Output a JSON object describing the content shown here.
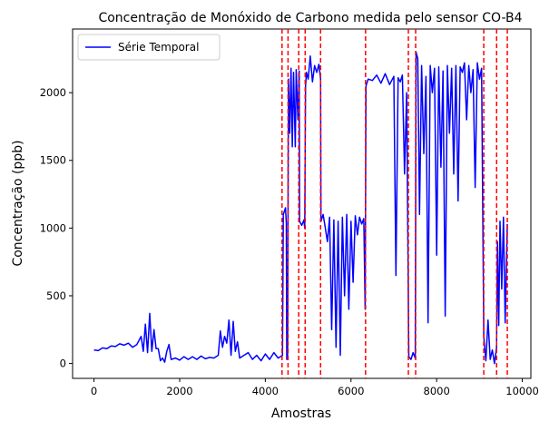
{
  "chart_data": {
    "type": "line",
    "title": "Concentração de Monóxido de Carbono medida pelo sensor CO-B4",
    "xlabel": "Amostras",
    "ylabel": "Concentração (ppb)",
    "xlim": [
      -500,
      10200
    ],
    "ylim": [
      -110,
      2470
    ],
    "x_ticks": [
      0,
      2000,
      4000,
      6000,
      8000,
      10000
    ],
    "y_ticks": [
      0,
      500,
      1000,
      1500,
      2000
    ],
    "grid": false,
    "legend": {
      "position": "upper-left",
      "entries": [
        "Série Temporal"
      ]
    },
    "series": [
      {
        "name": "Série Temporal",
        "color": "#0000ff",
        "points": [
          [
            0,
            100
          ],
          [
            100,
            95
          ],
          [
            200,
            115
          ],
          [
            300,
            110
          ],
          [
            400,
            130
          ],
          [
            500,
            125
          ],
          [
            600,
            145
          ],
          [
            700,
            135
          ],
          [
            800,
            150
          ],
          [
            900,
            120
          ],
          [
            1000,
            140
          ],
          [
            1100,
            200
          ],
          [
            1150,
            90
          ],
          [
            1200,
            290
          ],
          [
            1250,
            80
          ],
          [
            1300,
            370
          ],
          [
            1350,
            90
          ],
          [
            1400,
            250
          ],
          [
            1450,
            110
          ],
          [
            1500,
            110
          ],
          [
            1550,
            20
          ],
          [
            1600,
            40
          ],
          [
            1650,
            10
          ],
          [
            1700,
            90
          ],
          [
            1750,
            140
          ],
          [
            1800,
            30
          ],
          [
            1900,
            40
          ],
          [
            2000,
            25
          ],
          [
            2100,
            50
          ],
          [
            2200,
            30
          ],
          [
            2300,
            50
          ],
          [
            2400,
            30
          ],
          [
            2500,
            55
          ],
          [
            2600,
            35
          ],
          [
            2700,
            45
          ],
          [
            2800,
            40
          ],
          [
            2900,
            60
          ],
          [
            2950,
            240
          ],
          [
            3000,
            120
          ],
          [
            3050,
            200
          ],
          [
            3100,
            150
          ],
          [
            3150,
            320
          ],
          [
            3200,
            60
          ],
          [
            3250,
            310
          ],
          [
            3300,
            90
          ],
          [
            3350,
            160
          ],
          [
            3400,
            40
          ],
          [
            3500,
            60
          ],
          [
            3600,
            80
          ],
          [
            3700,
            30
          ],
          [
            3800,
            60
          ],
          [
            3900,
            20
          ],
          [
            4000,
            70
          ],
          [
            4100,
            30
          ],
          [
            4200,
            80
          ],
          [
            4300,
            40
          ],
          [
            4400,
            60
          ],
          [
            4420,
            1100
          ],
          [
            4470,
            1150
          ],
          [
            4490,
            1040
          ],
          [
            4500,
            30
          ],
          [
            4520,
            60
          ],
          [
            4540,
            2100
          ],
          [
            4570,
            1700
          ],
          [
            4600,
            2180
          ],
          [
            4630,
            1600
          ],
          [
            4660,
            2150
          ],
          [
            4700,
            1600
          ],
          [
            4720,
            2170
          ],
          [
            4760,
            1800
          ],
          [
            4790,
            2160
          ],
          [
            4800,
            1050
          ],
          [
            4850,
            1020
          ],
          [
            4900,
            1060
          ],
          [
            4920,
            1000
          ],
          [
            4940,
            2050
          ],
          [
            4960,
            2150
          ],
          [
            5000,
            2100
          ],
          [
            5050,
            2270
          ],
          [
            5100,
            2080
          ],
          [
            5150,
            2200
          ],
          [
            5200,
            2150
          ],
          [
            5250,
            2210
          ],
          [
            5290,
            2100
          ],
          [
            5300,
            1050
          ],
          [
            5350,
            1100
          ],
          [
            5400,
            1000
          ],
          [
            5450,
            900
          ],
          [
            5500,
            1080
          ],
          [
            5550,
            250
          ],
          [
            5600,
            1060
          ],
          [
            5650,
            120
          ],
          [
            5700,
            1050
          ],
          [
            5750,
            60
          ],
          [
            5800,
            1080
          ],
          [
            5850,
            500
          ],
          [
            5900,
            1100
          ],
          [
            5950,
            400
          ],
          [
            6000,
            1050
          ],
          [
            6050,
            600
          ],
          [
            6100,
            1090
          ],
          [
            6150,
            950
          ],
          [
            6200,
            1080
          ],
          [
            6250,
            1030
          ],
          [
            6300,
            1070
          ],
          [
            6330,
            400
          ],
          [
            6350,
            2050
          ],
          [
            6400,
            2100
          ],
          [
            6500,
            2090
          ],
          [
            6600,
            2130
          ],
          [
            6700,
            2070
          ],
          [
            6800,
            2140
          ],
          [
            6900,
            2060
          ],
          [
            7000,
            2120
          ],
          [
            7050,
            650
          ],
          [
            7100,
            2110
          ],
          [
            7150,
            2080
          ],
          [
            7200,
            2130
          ],
          [
            7250,
            1400
          ],
          [
            7300,
            2000
          ],
          [
            7320,
            1200
          ],
          [
            7350,
            50
          ],
          [
            7400,
            30
          ],
          [
            7450,
            80
          ],
          [
            7500,
            40
          ],
          [
            7520,
            2300
          ],
          [
            7560,
            2250
          ],
          [
            7600,
            1100
          ],
          [
            7650,
            2200
          ],
          [
            7700,
            1550
          ],
          [
            7750,
            2120
          ],
          [
            7800,
            300
          ],
          [
            7850,
            2200
          ],
          [
            7900,
            2000
          ],
          [
            7950,
            2180
          ],
          [
            8000,
            800
          ],
          [
            8050,
            2190
          ],
          [
            8100,
            1450
          ],
          [
            8150,
            2160
          ],
          [
            8200,
            350
          ],
          [
            8250,
            2200
          ],
          [
            8300,
            1700
          ],
          [
            8350,
            2180
          ],
          [
            8400,
            1400
          ],
          [
            8450,
            2200
          ],
          [
            8500,
            1200
          ],
          [
            8550,
            2190
          ],
          [
            8600,
            2150
          ],
          [
            8650,
            2220
          ],
          [
            8700,
            1800
          ],
          [
            8750,
            2200
          ],
          [
            8800,
            2000
          ],
          [
            8850,
            2170
          ],
          [
            8900,
            1300
          ],
          [
            8950,
            2220
          ],
          [
            9000,
            2100
          ],
          [
            9050,
            2180
          ],
          [
            9100,
            200
          ],
          [
            9150,
            20
          ],
          [
            9200,
            320
          ],
          [
            9250,
            30
          ],
          [
            9300,
            100
          ],
          [
            9350,
            0
          ],
          [
            9400,
            120
          ],
          [
            9420,
            900
          ],
          [
            9450,
            280
          ],
          [
            9480,
            1050
          ],
          [
            9520,
            550
          ],
          [
            9560,
            1080
          ],
          [
            9600,
            300
          ],
          [
            9650,
            1030
          ]
        ]
      }
    ],
    "vlines": {
      "color": "#ff0000",
      "style": "dashed",
      "x": [
        4390,
        4530,
        4780,
        4930,
        5290,
        6340,
        7340,
        7510,
        9100,
        9400,
        9650
      ]
    }
  }
}
